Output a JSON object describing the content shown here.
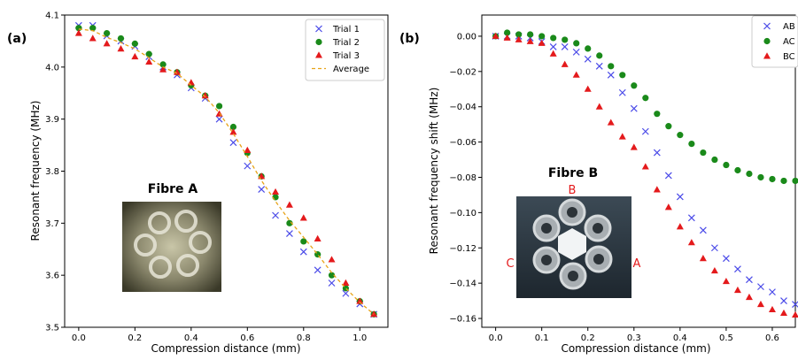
{
  "colors": {
    "blue": "#4a4ae8",
    "green": "#1a8a1a",
    "red": "#e41a1c",
    "orange": "#e8a317"
  },
  "chart_data": [
    {
      "panel_label": "(a)",
      "type": "scatter",
      "xlabel": "Compression distance (mm)",
      "ylabel": "Resonant frequency (MHz)",
      "xlim": [
        -0.05,
        1.1
      ],
      "ylim": [
        3.5,
        4.1
      ],
      "xticks": [
        0.0,
        0.2,
        0.4,
        0.6,
        0.8,
        1.0
      ],
      "xtick_labels": [
        "0.0",
        "0.2",
        "0.4",
        "0.6",
        "0.8",
        "1.0"
      ],
      "yticks": [
        3.5,
        3.6,
        3.7,
        3.8,
        3.9,
        4.0,
        4.1
      ],
      "ytick_labels": [
        "3.5",
        "3.6",
        "3.7",
        "3.8",
        "3.9",
        "4.0",
        "4.1"
      ],
      "legend": "top-right",
      "inset_title": "Fibre A",
      "series": [
        {
          "name": "Trial 1",
          "marker": "x",
          "color": "#4a4ae8",
          "x": [
            0.0,
            0.05,
            0.1,
            0.15,
            0.2,
            0.25,
            0.3,
            0.35,
            0.4,
            0.45,
            0.5,
            0.55,
            0.6,
            0.65,
            0.7,
            0.75,
            0.8,
            0.85,
            0.9,
            0.95,
            1.0,
            1.05
          ],
          "y": [
            4.08,
            4.08,
            4.06,
            4.05,
            4.04,
            4.02,
            4.0,
            3.985,
            3.96,
            3.94,
            3.9,
            3.855,
            3.81,
            3.765,
            3.715,
            3.68,
            3.645,
            3.61,
            3.585,
            3.565,
            3.545,
            3.525
          ]
        },
        {
          "name": "Trial 2",
          "marker": "circle",
          "color": "#1a8a1a",
          "x": [
            0.0,
            0.05,
            0.1,
            0.15,
            0.2,
            0.25,
            0.3,
            0.35,
            0.4,
            0.45,
            0.5,
            0.55,
            0.6,
            0.65,
            0.7,
            0.75,
            0.8,
            0.85,
            0.9,
            0.95,
            1.0,
            1.05
          ],
          "y": [
            4.075,
            4.075,
            4.065,
            4.055,
            4.045,
            4.025,
            4.005,
            3.99,
            3.965,
            3.945,
            3.925,
            3.885,
            3.835,
            3.79,
            3.75,
            3.7,
            3.665,
            3.64,
            3.6,
            3.575,
            3.55,
            3.525
          ]
        },
        {
          "name": "Trial 3",
          "marker": "triangle",
          "color": "#e41a1c",
          "x": [
            0.0,
            0.05,
            0.1,
            0.15,
            0.2,
            0.25,
            0.3,
            0.35,
            0.4,
            0.45,
            0.5,
            0.55,
            0.6,
            0.65,
            0.7,
            0.75,
            0.8,
            0.85,
            0.9,
            0.95,
            1.0,
            1.05
          ],
          "y": [
            4.065,
            4.055,
            4.045,
            4.035,
            4.02,
            4.01,
            3.995,
            3.99,
            3.97,
            3.945,
            3.91,
            3.875,
            3.84,
            3.79,
            3.76,
            3.735,
            3.71,
            3.67,
            3.63,
            3.585,
            3.55,
            3.525
          ]
        },
        {
          "name": "Average",
          "marker": "dashed-line",
          "color": "#e8a317",
          "x": [
            0.0,
            0.05,
            0.1,
            0.15,
            0.2,
            0.25,
            0.3,
            0.35,
            0.4,
            0.45,
            0.5,
            0.55,
            0.6,
            0.65,
            0.7,
            0.75,
            0.8,
            0.85,
            0.9,
            0.95,
            1.0,
            1.05
          ],
          "y": [
            4.073,
            4.07,
            4.057,
            4.047,
            4.035,
            4.018,
            4.0,
            3.988,
            3.965,
            3.943,
            3.912,
            3.872,
            3.828,
            3.782,
            3.742,
            3.705,
            3.673,
            3.64,
            3.605,
            3.575,
            3.548,
            3.525
          ]
        }
      ]
    },
    {
      "panel_label": "(b)",
      "type": "scatter",
      "xlabel": "Compression distance (mm)",
      "ylabel": "Resonant frequency shift (MHz)",
      "xlim": [
        -0.03,
        0.65
      ],
      "ylim": [
        -0.165,
        0.012
      ],
      "xticks": [
        0.0,
        0.1,
        0.2,
        0.3,
        0.4,
        0.5,
        0.6
      ],
      "xtick_labels": [
        "0.0",
        "0.1",
        "0.2",
        "0.3",
        "0.4",
        "0.5",
        "0.6"
      ],
      "yticks": [
        0.0,
        -0.02,
        -0.04,
        -0.06,
        -0.08,
        -0.1,
        -0.12,
        -0.14,
        -0.16
      ],
      "ytick_labels": [
        "0.00",
        "−0.02",
        "−0.04",
        "−0.06",
        "−0.08",
        "−0.10",
        "−0.12",
        "−0.14",
        "−0.16"
      ],
      "legend": "top-right",
      "inset_title": "Fibre B",
      "inset_labels": [
        "B",
        "C",
        "A"
      ],
      "series": [
        {
          "name": "AB",
          "marker": "x",
          "color": "#4a4ae8",
          "x": [
            0.0,
            0.025,
            0.05,
            0.075,
            0.1,
            0.125,
            0.15,
            0.175,
            0.2,
            0.225,
            0.25,
            0.275,
            0.3,
            0.325,
            0.35,
            0.375,
            0.4,
            0.425,
            0.45,
            0.475,
            0.5,
            0.525,
            0.55,
            0.575,
            0.6,
            0.625,
            0.65
          ],
          "y": [
            0.0,
            0.0,
            0.0,
            -0.001,
            -0.003,
            -0.006,
            -0.006,
            -0.009,
            -0.013,
            -0.017,
            -0.022,
            -0.032,
            -0.041,
            -0.054,
            -0.066,
            -0.079,
            -0.091,
            -0.103,
            -0.11,
            -0.12,
            -0.126,
            -0.132,
            -0.138,
            -0.142,
            -0.145,
            -0.15,
            -0.152
          ]
        },
        {
          "name": "AC",
          "marker": "circle",
          "color": "#1a8a1a",
          "x": [
            0.0,
            0.025,
            0.05,
            0.075,
            0.1,
            0.125,
            0.15,
            0.175,
            0.2,
            0.225,
            0.25,
            0.275,
            0.3,
            0.325,
            0.35,
            0.375,
            0.4,
            0.425,
            0.45,
            0.475,
            0.5,
            0.525,
            0.55,
            0.575,
            0.6,
            0.625,
            0.65
          ],
          "y": [
            0.0,
            0.002,
            0.001,
            0.001,
            0.0,
            -0.001,
            -0.002,
            -0.004,
            -0.007,
            -0.011,
            -0.017,
            -0.022,
            -0.028,
            -0.035,
            -0.044,
            -0.051,
            -0.056,
            -0.061,
            -0.066,
            -0.07,
            -0.073,
            -0.076,
            -0.078,
            -0.08,
            -0.081,
            -0.082,
            -0.082
          ]
        },
        {
          "name": "BC",
          "marker": "triangle",
          "color": "#e41a1c",
          "x": [
            0.0,
            0.025,
            0.05,
            0.075,
            0.1,
            0.125,
            0.15,
            0.175,
            0.2,
            0.225,
            0.25,
            0.275,
            0.3,
            0.325,
            0.35,
            0.375,
            0.4,
            0.425,
            0.45,
            0.475,
            0.5,
            0.525,
            0.55,
            0.575,
            0.6,
            0.625,
            0.65
          ],
          "y": [
            0.0,
            -0.001,
            -0.002,
            -0.003,
            -0.004,
            -0.01,
            -0.016,
            -0.022,
            -0.03,
            -0.04,
            -0.049,
            -0.057,
            -0.063,
            -0.074,
            -0.087,
            -0.097,
            -0.108,
            -0.117,
            -0.126,
            -0.133,
            -0.139,
            -0.144,
            -0.148,
            -0.152,
            -0.155,
            -0.157,
            -0.158
          ]
        }
      ]
    }
  ]
}
